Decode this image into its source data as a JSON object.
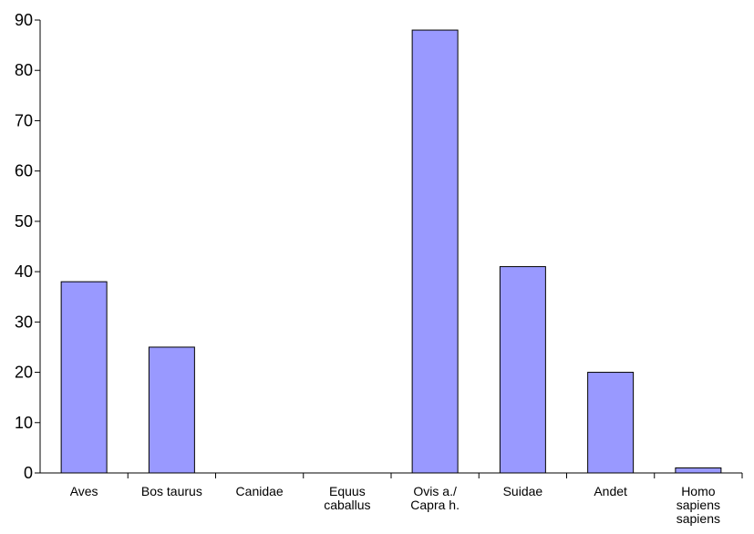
{
  "chart_data": {
    "type": "bar",
    "categories": [
      [
        "Aves"
      ],
      [
        "Bos taurus"
      ],
      [
        "Canidae"
      ],
      [
        "Equus",
        "caballus"
      ],
      [
        "Ovis a./",
        "Capra h."
      ],
      [
        "Suidae"
      ],
      [
        "Andet"
      ],
      [
        "Homo",
        "sapiens",
        "sapiens"
      ]
    ],
    "values": [
      38,
      25,
      0,
      0,
      88,
      41,
      20,
      1
    ],
    "title": "",
    "xlabel": "",
    "ylabel": "",
    "ylim": [
      0,
      90
    ],
    "yticks": [
      0,
      10,
      20,
      30,
      40,
      50,
      60,
      70,
      80,
      90
    ],
    "grid": false,
    "legend": "none",
    "colors": {
      "bar_fill": "#9999ff",
      "bar_stroke": "#000000",
      "axis": "#000000"
    }
  }
}
